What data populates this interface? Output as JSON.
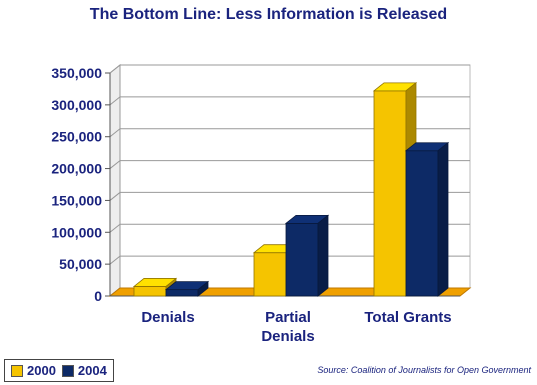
{
  "title": "The Bottom Line: Less Information is Released",
  "source": "Source: Coalition of Journalists for Open Government",
  "colors": {
    "series_2000": "#f5c400",
    "series_2004": "#0d2a66",
    "floor": "#f0a000",
    "axis_text": "#1a237e"
  },
  "chart_data": {
    "type": "bar",
    "title": "The Bottom Line: Less Information is Released",
    "categories": [
      "Denials",
      "Partial Denials",
      "Total Grants"
    ],
    "category_lines": [
      [
        "Denials"
      ],
      [
        "Partial",
        "Denials"
      ],
      [
        "Total Grants"
      ]
    ],
    "series": [
      {
        "name": "2000",
        "values": [
          15000,
          68000,
          322000
        ]
      },
      {
        "name": "2004",
        "values": [
          10000,
          114000,
          228000
        ]
      }
    ],
    "ylim": [
      0,
      350000
    ],
    "yticks": [
      "0",
      "50,000",
      "100,000",
      "150,000",
      "200,000",
      "250,000",
      "300,000",
      "350,000"
    ],
    "grid": true,
    "legend": "bottom-left"
  }
}
